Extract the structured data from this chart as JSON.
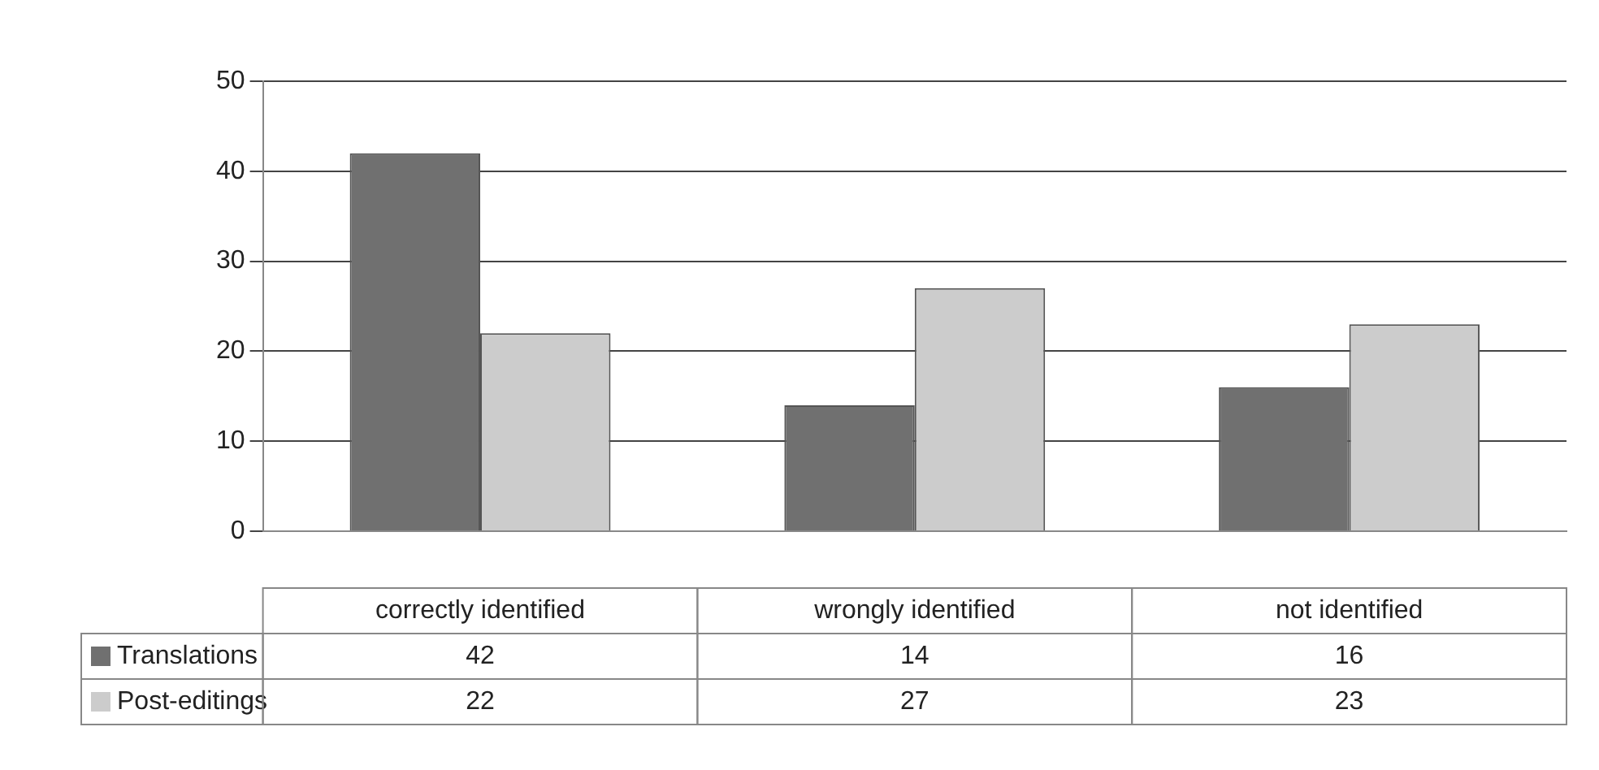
{
  "chart_data": {
    "type": "bar",
    "categories": [
      "correctly identified",
      "wrongly identified",
      "not identified"
    ],
    "series": [
      {
        "name": "Translations",
        "color": "#707070",
        "values": [
          42,
          14,
          16
        ]
      },
      {
        "name": "Post-editings",
        "color": "#cccccc",
        "values": [
          22,
          27,
          23
        ]
      }
    ],
    "ylim": [
      0,
      50
    ],
    "yticks": [
      0,
      10,
      20,
      30,
      40,
      50
    ],
    "grid": "y",
    "legend": "bottom left",
    "data_labels": true
  }
}
